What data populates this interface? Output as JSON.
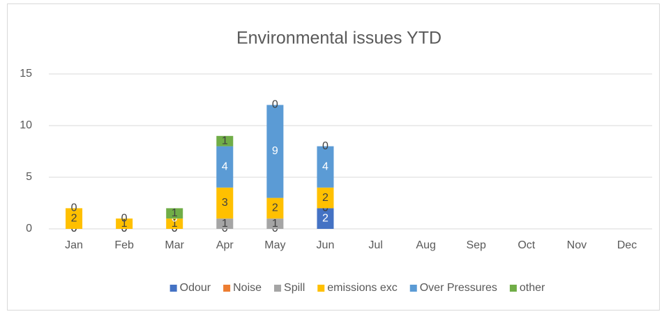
{
  "chart_data": {
    "type": "stacked_bar",
    "title": "Environmental issues YTD",
    "categories": [
      "Jan",
      "Feb",
      "Mar",
      "Apr",
      "May",
      "Jun",
      "Jul",
      "Aug",
      "Sep",
      "Oct",
      "Nov",
      "Dec"
    ],
    "series": [
      {
        "name": "Odour",
        "color": "#4472c4",
        "label_color": "#ffffff",
        "values": [
          0,
          0,
          0,
          0,
          0,
          2,
          null,
          null,
          null,
          null,
          null,
          null
        ]
      },
      {
        "name": "Noise",
        "color": "#ed7d31",
        "label_color": "#404040",
        "values": [
          0,
          0,
          0,
          0,
          0,
          0,
          null,
          null,
          null,
          null,
          null,
          null
        ]
      },
      {
        "name": "Spill",
        "color": "#a5a5a5",
        "label_color": "#404040",
        "values": [
          0,
          0,
          0,
          1,
          1,
          0,
          null,
          null,
          null,
          null,
          null,
          null
        ]
      },
      {
        "name": "emissions exc",
        "color": "#ffc000",
        "label_color": "#404040",
        "values": [
          2,
          1,
          1,
          3,
          2,
          2,
          null,
          null,
          null,
          null,
          null,
          null
        ]
      },
      {
        "name": "Over Pressures",
        "color": "#5b9bd5",
        "label_color": "#ffffff",
        "values": [
          0,
          0,
          0,
          4,
          9,
          4,
          null,
          null,
          null,
          null,
          null,
          null
        ]
      },
      {
        "name": "other",
        "color": "#70ad47",
        "label_color": "#404040",
        "values": [
          0,
          0,
          1,
          1,
          0,
          0,
          null,
          null,
          null,
          null,
          null,
          null
        ]
      }
    ],
    "ylim": [
      0,
      15
    ],
    "yticks": [
      0,
      5,
      10,
      15
    ],
    "grid": true,
    "legend": "bottom"
  }
}
